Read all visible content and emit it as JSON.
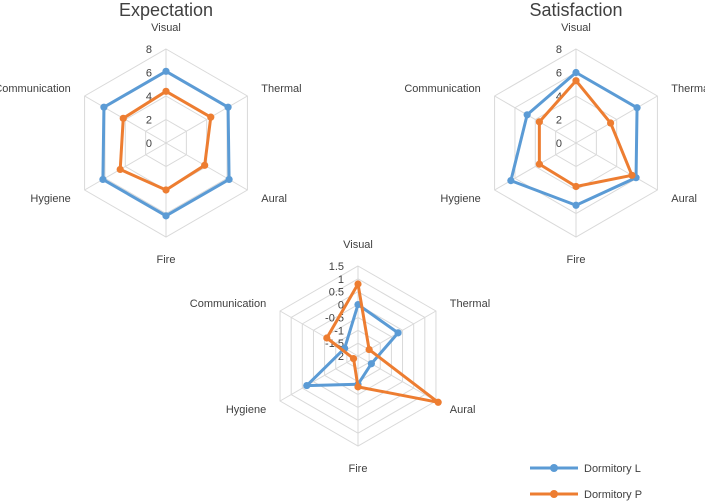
{
  "colors": {
    "dormitory_l": "#5b9bd5",
    "dormitory_p": "#ed7d31",
    "grid": "#d9d9d9",
    "text": "#404040"
  },
  "legend": {
    "series_l": "Dormitory L",
    "series_p": "Dormitory P"
  },
  "chart_data": [
    {
      "type": "radar",
      "title": "Expectation",
      "axes": [
        "Visual",
        "Thermal",
        "Aural",
        "Fire",
        "Hygiene",
        "Communication"
      ],
      "rmin": 0,
      "rmax": 8,
      "ticks": [
        0,
        2,
        4,
        6,
        8
      ],
      "tick_labels": [
        "0",
        "2",
        "4",
        "6",
        "8"
      ],
      "series": [
        {
          "name": "Dormitory L",
          "values": [
            6.1,
            6.1,
            6.2,
            6.2,
            6.2,
            6.1
          ]
        },
        {
          "name": "Dormitory P",
          "values": [
            4.4,
            4.4,
            3.8,
            4.0,
            4.5,
            4.2
          ]
        }
      ]
    },
    {
      "type": "radar",
      "title": "Satisfaction",
      "axes": [
        "Visual",
        "Thermal",
        "Aural",
        "Fire",
        "Hygiene",
        "Communication"
      ],
      "rmin": 0,
      "rmax": 8,
      "ticks": [
        0,
        2,
        4,
        6,
        8
      ],
      "tick_labels": [
        "0",
        "2",
        "4",
        "6",
        "8"
      ],
      "series": [
        {
          "name": "Dormitory L",
          "values": [
            6.0,
            6.0,
            5.9,
            5.3,
            6.4,
            4.8
          ]
        },
        {
          "name": "Dormitory P",
          "values": [
            5.3,
            3.4,
            5.5,
            3.7,
            3.6,
            3.6
          ]
        }
      ]
    },
    {
      "type": "radar",
      "title": "",
      "axes": [
        "Visual",
        "Thermal",
        "Aural",
        "Fire",
        "Hygiene",
        "Communication"
      ],
      "rmin": -2,
      "rmax": 1.5,
      "ticks": [
        -2,
        -1.5,
        -1,
        -0.5,
        0,
        0.5,
        1,
        1.5
      ],
      "tick_labels": [
        "-2",
        "-1.5",
        "-1",
        "-0.5",
        "0",
        "0.5",
        "1",
        "1.5"
      ],
      "series": [
        {
          "name": "Dormitory L",
          "values": [
            0.0,
            -0.2,
            -1.4,
            -0.9,
            0.3,
            -1.4
          ]
        },
        {
          "name": "Dormitory P",
          "values": [
            0.8,
            -1.5,
            1.6,
            -0.8,
            -1.8,
            -0.6
          ]
        }
      ]
    }
  ]
}
